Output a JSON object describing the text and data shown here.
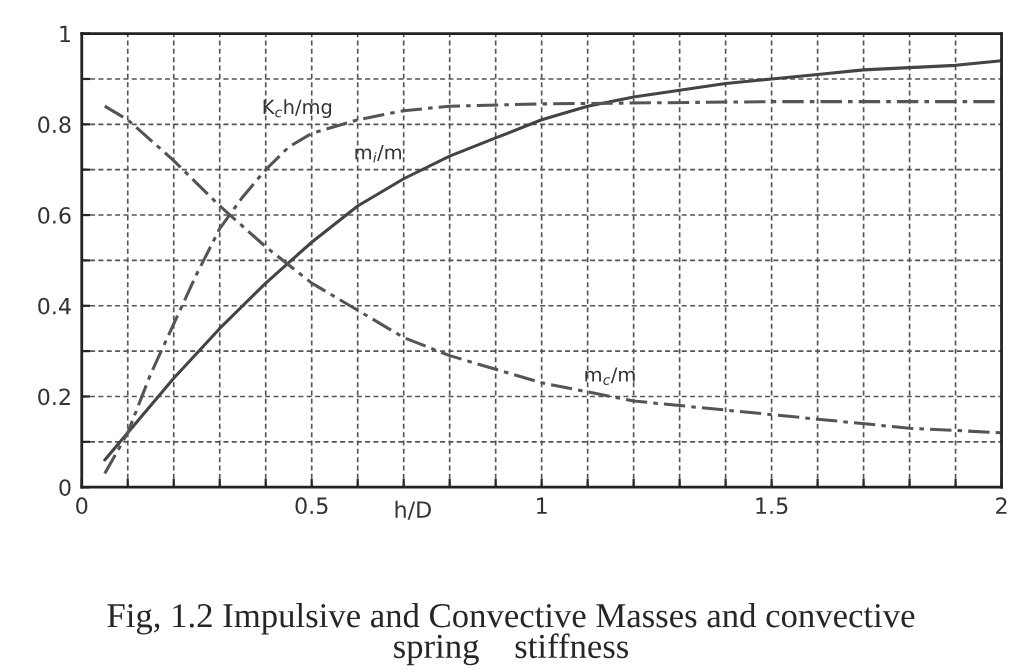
{
  "chart_data": {
    "type": "line",
    "xlabel": "h/D",
    "xlim": [
      0,
      2
    ],
    "ylim": [
      0,
      1
    ],
    "xticks": [
      0,
      {
        "value": 0.1,
        "label": null
      },
      {
        "value": 0.2,
        "label": null
      },
      {
        "value": 0.3,
        "label": null
      },
      {
        "value": 0.4,
        "label": null
      },
      0.5,
      {
        "value": 0.6,
        "label": null
      },
      {
        "value": 0.7,
        "label": null
      },
      {
        "value": 0.8,
        "label": null
      },
      {
        "value": 0.9,
        "label": null
      },
      1,
      {
        "value": 1.1,
        "label": null
      },
      {
        "value": 1.2,
        "label": null
      },
      {
        "value": 1.3,
        "label": null
      },
      {
        "value": 1.4,
        "label": null
      },
      1.5,
      {
        "value": 1.6,
        "label": null
      },
      {
        "value": 1.7,
        "label": null
      },
      {
        "value": 1.8,
        "label": null
      },
      {
        "value": 1.9,
        "label": null
      },
      2
    ],
    "yticks": [
      0,
      {
        "value": 0.1,
        "label": null
      },
      0.2,
      {
        "value": 0.3,
        "label": null
      },
      0.4,
      {
        "value": 0.5,
        "label": null
      },
      0.6,
      {
        "value": 0.7,
        "label": null
      },
      0.8,
      {
        "value": 0.9,
        "label": null
      },
      1
    ],
    "grid": true,
    "series": [
      {
        "color": "#444444",
        "line_style": "solid",
        "x": [
          0.05,
          0.1,
          0.2,
          0.3,
          0.4,
          0.5,
          0.6,
          0.7,
          0.8,
          0.9,
          1.0,
          1.1,
          1.2,
          1.3,
          1.4,
          1.5,
          1.6,
          1.7,
          1.8,
          1.9,
          2.0
        ],
        "values": [
          0.06,
          0.12,
          0.24,
          0.35,
          0.45,
          0.54,
          0.62,
          0.68,
          0.73,
          0.77,
          0.81,
          0.84,
          0.86,
          0.875,
          0.89,
          0.9,
          0.91,
          0.92,
          0.925,
          0.93,
          0.94
        ]
      },
      {
        "color": "#555555",
        "line_style": "dashed",
        "x": [
          0.05,
          0.1,
          0.15,
          0.2,
          0.25,
          0.3,
          0.35,
          0.4,
          0.45,
          0.5,
          0.6,
          0.7,
          0.8,
          1.0,
          1.5,
          2.0
        ],
        "values": [
          0.03,
          0.12,
          0.25,
          0.36,
          0.47,
          0.57,
          0.64,
          0.7,
          0.75,
          0.78,
          0.81,
          0.83,
          0.84,
          0.845,
          0.85,
          0.85
        ]
      },
      {
        "color": "#555555",
        "line_style": "dashed",
        "x": [
          0.05,
          0.1,
          0.2,
          0.3,
          0.4,
          0.5,
          0.6,
          0.7,
          0.8,
          0.9,
          1.0,
          1.1,
          1.2,
          1.4,
          1.6,
          1.8,
          2.0
        ],
        "values": [
          0.84,
          0.81,
          0.72,
          0.62,
          0.53,
          0.45,
          0.39,
          0.33,
          0.29,
          0.26,
          0.23,
          0.21,
          0.19,
          0.17,
          0.15,
          0.13,
          0.12
        ]
      }
    ],
    "annotations": [
      {
        "text": "K$_{c}$h/mg",
        "x": 0.5,
        "y": 0.78
      },
      {
        "text": "m$_{i}$/m",
        "x": 0.7,
        "y": 0.68
      },
      {
        "text": "m$_{c}$/m",
        "x": 1.2,
        "y": 0.19
      },
      "Fig, 1.2 Impulsive and Convective Masses and convective\nspring    stiffness"
    ]
  }
}
